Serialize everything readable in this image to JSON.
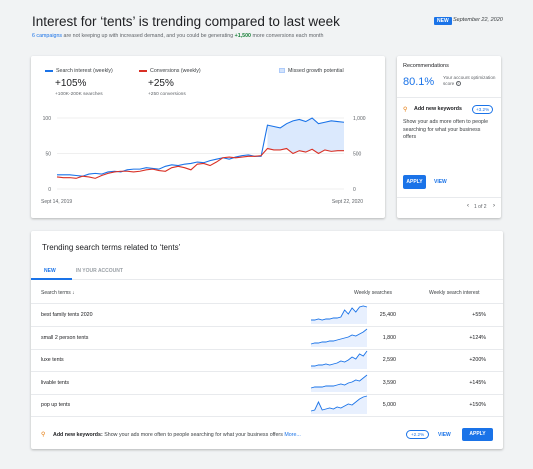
{
  "header": {
    "title": "Interest for ‘tents’ is trending compared to last week",
    "badge": "NEW",
    "date": "September 22, 2020",
    "subtitle_link": "6 campaigns",
    "subtitle_mid": " are not keeping up with increased demand, and you could be generating ",
    "subtitle_value": "+1,500",
    "subtitle_end": " more conversions each month"
  },
  "chart_card": {
    "legend": {
      "search_interest": "Search interest (weekly)",
      "conversions": "Conversions (weekly)",
      "missed": "Missed growth potential"
    },
    "stats": {
      "search_value": "+105%",
      "search_sub": "+100K-200K searches",
      "conv_value": "+25%",
      "conv_sub": "+250 conversions"
    },
    "colors": {
      "search": "#1a73e8",
      "conversions": "#d93025",
      "missed": "#d2e3fc"
    }
  },
  "chart_data": {
    "type": "line",
    "x_start": "Sept 14, 2019",
    "x_end": "Sept 22, 2020",
    "left_axis": {
      "ticks": [
        "100",
        "50",
        "0"
      ],
      "ylim": [
        0,
        100
      ]
    },
    "right_axis": {
      "ticks": [
        "1,000",
        "500",
        "0"
      ],
      "ylim": [
        0,
        1000
      ]
    },
    "series": [
      {
        "name": "Search interest (weekly)",
        "values": [
          20,
          20,
          20,
          19,
          18,
          21,
          22,
          21,
          24,
          25,
          24,
          27,
          28,
          28,
          30,
          29,
          28,
          32,
          34,
          33,
          35,
          36,
          38,
          37,
          40,
          42,
          44,
          42,
          45,
          47,
          48,
          46,
          46,
          90,
          88,
          86,
          92,
          96,
          98,
          95,
          100,
          92,
          94,
          96,
          95,
          94
        ]
      },
      {
        "name": "Conversions (weekly)",
        "values": [
          17,
          16,
          16,
          15,
          18,
          17,
          15,
          19,
          22,
          24,
          25,
          25,
          24,
          25,
          27,
          28,
          26,
          25,
          30,
          32,
          30,
          27,
          35,
          36,
          33,
          38,
          44,
          45,
          44,
          45,
          46,
          46,
          47,
          57,
          55,
          55,
          57,
          50,
          54,
          52,
          56,
          50,
          55,
          53,
          54,
          54
        ]
      }
    ],
    "missed_growth_start_index": 33
  },
  "recommendations": {
    "title": "Recommendations",
    "score": "80.1%",
    "score_label": "Your account optimization score",
    "help_icon": "help-icon",
    "keyword_title": "Add new keywords",
    "chip": "+3.2%",
    "description": "Show your ads more often to people searching for what your business offers",
    "apply": "APPLY",
    "view": "VIEW",
    "pager": "1 of 2"
  },
  "terms_card": {
    "title": "Trending search terms related to ‘tents’",
    "tabs": [
      "NEW",
      "IN YOUR ACCOUNT"
    ],
    "columns": {
      "term": "Search terms",
      "searches": "Weekly searches",
      "interest": "Weekly search interest"
    },
    "rows": [
      {
        "term": "best family tents 2020",
        "searches": "25,400",
        "interest": "+55%",
        "spark": [
          4,
          4,
          5,
          4,
          5,
          5,
          6,
          6,
          7,
          14,
          10,
          16,
          12,
          17,
          18,
          17
        ]
      },
      {
        "term": "small 2 person tents",
        "searches": "1,800",
        "interest": "+124%",
        "spark": [
          3,
          4,
          4,
          5,
          5,
          6,
          6,
          7,
          8,
          9,
          10,
          12,
          11,
          13,
          15,
          18
        ]
      },
      {
        "term": "luxe tents",
        "searches": "2,590",
        "interest": "+200%",
        "spark": [
          3,
          3,
          4,
          4,
          5,
          4,
          5,
          6,
          8,
          7,
          9,
          12,
          10,
          15,
          13,
          18
        ]
      },
      {
        "term": "livable tents",
        "searches": "3,590",
        "interest": "+145%",
        "spark": [
          4,
          5,
          5,
          5,
          6,
          6,
          6,
          7,
          8,
          7,
          9,
          10,
          12,
          11,
          14,
          17
        ]
      },
      {
        "term": "pop up tents",
        "searches": "5,000",
        "interest": "+150%",
        "spark": [
          3,
          4,
          12,
          4,
          5,
          6,
          5,
          7,
          6,
          8,
          10,
          9,
          12,
          15,
          17,
          18
        ]
      }
    ],
    "footer": {
      "label": "Add new keywords:",
      "text": " Show your ads more often to people searching for what your business offers ",
      "more": "More...",
      "chip": "+2.2%",
      "view": "VIEW",
      "apply": "APPLY"
    }
  }
}
